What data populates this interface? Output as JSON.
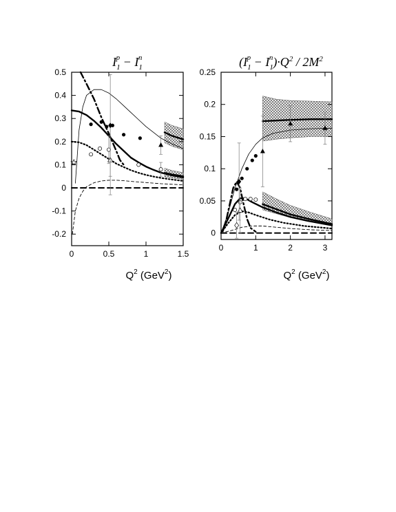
{
  "chart_data": [
    {
      "type": "line",
      "title": "I_1^p − I_1^n",
      "title_parts": [
        "I",
        "1",
        "p",
        " − I",
        "1",
        "n"
      ],
      "xlabel": "Q² (GeV²)",
      "xlabel_parts": [
        "Q",
        "2",
        " (GeV",
        "2",
        ")"
      ],
      "xlim": [
        0,
        1.5
      ],
      "ylim": [
        -0.25,
        0.5
      ],
      "xticks": [
        "0",
        "0.5",
        "1",
        "1.5"
      ],
      "xtick_values": [
        0,
        0.5,
        1,
        1.5
      ],
      "yticks": [
        "-0.2",
        "-0.1",
        "0",
        "0.1",
        "0.2",
        "0.3",
        "0.4",
        "0.5"
      ],
      "ytick_values": [
        -0.2,
        -0.1,
        0,
        0.1,
        0.2,
        0.3,
        0.4,
        0.5
      ],
      "grid": false,
      "series": [
        {
          "style": "thin-solid",
          "points": [
            [
              0.05,
              0.02
            ],
            [
              0.1,
              0.25
            ],
            [
              0.15,
              0.35
            ],
            [
              0.2,
              0.4
            ],
            [
              0.3,
              0.425
            ],
            [
              0.4,
              0.425
            ],
            [
              0.5,
              0.41
            ],
            [
              0.6,
              0.385
            ],
            [
              0.7,
              0.355
            ],
            [
              0.8,
              0.325
            ],
            [
              0.9,
              0.295
            ],
            [
              1.0,
              0.265
            ],
            [
              1.1,
              0.24
            ],
            [
              1.2,
              0.215
            ],
            [
              1.35,
              0.19
            ],
            [
              1.5,
              0.17
            ]
          ]
        },
        {
          "style": "thick-solid",
          "points": [
            [
              0,
              0.335
            ],
            [
              0.1,
              0.33
            ],
            [
              0.2,
              0.315
            ],
            [
              0.3,
              0.29
            ],
            [
              0.4,
              0.26
            ],
            [
              0.5,
              0.225
            ],
            [
              0.6,
              0.19
            ],
            [
              0.7,
              0.16
            ],
            [
              0.8,
              0.13
            ],
            [
              0.9,
              0.11
            ],
            [
              1.0,
              0.092
            ],
            [
              1.1,
              0.078
            ],
            [
              1.2,
              0.066
            ],
            [
              1.35,
              0.054
            ],
            [
              1.5,
              0.045
            ]
          ]
        },
        {
          "style": "thick-dashdot",
          "points": [
            [
              0.12,
              0.5
            ],
            [
              0.2,
              0.45
            ],
            [
              0.3,
              0.385
            ],
            [
              0.4,
              0.305
            ],
            [
              0.5,
              0.235
            ],
            [
              0.6,
              0.16
            ],
            [
              0.65,
              0.12
            ],
            [
              0.7,
              0.1
            ]
          ]
        },
        {
          "style": "thick-dotted",
          "points": [
            [
              0,
              0.2
            ],
            [
              0.1,
              0.197
            ],
            [
              0.2,
              0.185
            ],
            [
              0.3,
              0.165
            ],
            [
              0.4,
              0.145
            ],
            [
              0.5,
              0.125
            ],
            [
              0.6,
              0.105
            ],
            [
              0.7,
              0.09
            ],
            [
              0.8,
              0.076
            ],
            [
              0.9,
              0.065
            ],
            [
              1.0,
              0.056
            ],
            [
              1.1,
              0.049
            ],
            [
              1.2,
              0.043
            ],
            [
              1.35,
              0.036
            ],
            [
              1.5,
              0.03
            ]
          ]
        },
        {
          "style": "thin-dashed",
          "points": [
            [
              0.01,
              -0.2
            ],
            [
              0.05,
              -0.1
            ],
            [
              0.1,
              -0.045
            ],
            [
              0.15,
              -0.015
            ],
            [
              0.2,
              0.005
            ],
            [
              0.3,
              0.022
            ],
            [
              0.4,
              0.03
            ],
            [
              0.5,
              0.033
            ],
            [
              0.6,
              0.033
            ],
            [
              0.7,
              0.031
            ],
            [
              0.8,
              0.028
            ],
            [
              1.0,
              0.023
            ],
            [
              1.2,
              0.018
            ],
            [
              1.5,
              0.013
            ]
          ]
        },
        {
          "style": "thick-dashed",
          "points": [
            [
              0,
              0
            ],
            [
              1.5,
              0
            ]
          ]
        },
        {
          "style": "thick-solid",
          "points": [
            [
              1.25,
              0.24
            ],
            [
              1.35,
              0.225
            ],
            [
              1.5,
              0.21
            ]
          ]
        },
        {
          "style": "thick-solid",
          "points": [
            [
              1.25,
              0.065
            ],
            [
              1.35,
              0.058
            ],
            [
              1.5,
              0.05
            ]
          ]
        }
      ],
      "bands": [
        {
          "x": [
            1.25,
            1.35,
            1.5
          ],
          "lower": [
            0.195,
            0.18,
            0.165
          ],
          "upper": [
            0.285,
            0.27,
            0.255
          ]
        },
        {
          "x": [
            1.25,
            1.35,
            1.5
          ],
          "lower": [
            0.048,
            0.043,
            0.037
          ],
          "upper": [
            0.085,
            0.075,
            0.066
          ]
        }
      ],
      "points": [
        {
          "marker": "filled-circle",
          "data": [
            [
              0.26,
              0.275,
              0
            ],
            [
              0.4,
              0.285,
              0
            ],
            [
              0.47,
              0.265,
              0
            ],
            [
              0.55,
              0.27,
              0
            ],
            [
              0.7,
              0.23,
              0
            ],
            [
              0.92,
              0.215,
              0
            ]
          ]
        },
        {
          "marker": "open-circle",
          "data": [
            [
              0.26,
              0.145,
              0
            ],
            [
              0.38,
              0.17,
              0
            ],
            [
              0.5,
              0.165,
              0.06
            ],
            [
              0.9,
              0.1,
              0
            ],
            [
              1.2,
              0.08,
              0.03
            ]
          ]
        },
        {
          "marker": "filled-triangle",
          "data": [
            [
              1.2,
              0.185,
              0.04
            ]
          ]
        },
        {
          "marker": "open-triangle",
          "data": [
            [
              0.52,
              0.12,
              0.15
            ]
          ]
        },
        {
          "marker": "filled-diamond",
          "data": [
            [
              0.52,
              0.27,
              0.22
            ]
          ]
        },
        {
          "marker": "star",
          "data": [
            [
              0.03,
              0.11,
              0
            ]
          ]
        }
      ]
    },
    {
      "type": "line",
      "title": "(I_1^p − I_1^n)·Q²/2M²",
      "title_parts": [
        "(I",
        "1",
        "p",
        " − I",
        "1",
        "n",
        ")·Q",
        "2",
        " / 2M",
        "2"
      ],
      "xlabel": "Q² (GeV²)",
      "xlabel_parts": [
        "Q",
        "2",
        " (GeV",
        "2",
        ")"
      ],
      "xlim": [
        0,
        3.2
      ],
      "ylim": [
        -0.01,
        0.25
      ],
      "xticks": [
        "0",
        "1",
        "2",
        "3"
      ],
      "xtick_values": [
        0,
        1,
        2,
        3
      ],
      "yticks": [
        "0",
        "0.05",
        "0.1",
        "0.15",
        "0.2",
        "0.25"
      ],
      "ytick_values": [
        0,
        0.05,
        0.1,
        0.15,
        0.2,
        0.25
      ],
      "grid": false,
      "series": [
        {
          "style": "thin-solid",
          "points": [
            [
              0,
              0
            ],
            [
              0.2,
              0.03
            ],
            [
              0.4,
              0.07
            ],
            [
              0.6,
              0.1
            ],
            [
              0.8,
              0.123
            ],
            [
              1.0,
              0.138
            ],
            [
              1.2,
              0.148
            ],
            [
              1.5,
              0.155
            ],
            [
              2.0,
              0.16
            ],
            [
              2.5,
              0.162
            ],
            [
              3.2,
              0.163
            ]
          ]
        },
        {
          "style": "thick-solid",
          "points": [
            [
              0,
              0
            ],
            [
              0.2,
              0.022
            ],
            [
              0.4,
              0.045
            ],
            [
              0.55,
              0.054
            ],
            [
              0.7,
              0.054
            ],
            [
              0.9,
              0.048
            ],
            [
              1.2,
              0.04
            ],
            [
              1.6,
              0.032
            ],
            [
              2.0,
              0.025
            ],
            [
              2.5,
              0.019
            ],
            [
              3.2,
              0.012
            ]
          ]
        },
        {
          "style": "thick-dashdot",
          "points": [
            [
              0.05,
              0.003
            ],
            [
              0.15,
              0.02
            ],
            [
              0.25,
              0.045
            ],
            [
              0.35,
              0.07
            ],
            [
              0.45,
              0.08
            ],
            [
              0.55,
              0.07
            ],
            [
              0.65,
              0.045
            ],
            [
              0.75,
              0.022
            ],
            [
              0.85,
              0.008
            ],
            [
              1.0,
              0.002
            ]
          ]
        },
        {
          "style": "thick-dotted",
          "points": [
            [
              0,
              0
            ],
            [
              0.2,
              0.015
            ],
            [
              0.4,
              0.028
            ],
            [
              0.6,
              0.034
            ],
            [
              0.8,
              0.032
            ],
            [
              1.0,
              0.028
            ],
            [
              1.4,
              0.021
            ],
            [
              1.8,
              0.016
            ],
            [
              2.4,
              0.011
            ],
            [
              3.2,
              0.007
            ]
          ]
        },
        {
          "style": "thin-dashed",
          "points": [
            [
              0,
              0
            ],
            [
              0.3,
              0.004
            ],
            [
              0.6,
              0.009
            ],
            [
              0.9,
              0.011
            ],
            [
              1.2,
              0.011
            ],
            [
              1.6,
              0.009
            ],
            [
              2.0,
              0.007
            ],
            [
              2.6,
              0.005
            ],
            [
              3.2,
              0.004
            ]
          ]
        },
        {
          "style": "thick-dashed",
          "points": [
            [
              0,
              0
            ],
            [
              3.2,
              0
            ]
          ]
        },
        {
          "style": "thick-solid",
          "points": [
            [
              1.2,
              0.174
            ],
            [
              2.0,
              0.176
            ],
            [
              2.6,
              0.177
            ],
            [
              3.2,
              0.177
            ]
          ]
        },
        {
          "style": "thick-solid",
          "points": [
            [
              1.2,
              0.045
            ],
            [
              1.6,
              0.037
            ],
            [
              2.0,
              0.029
            ],
            [
              2.6,
              0.021
            ],
            [
              3.2,
              0.014
            ]
          ]
        }
      ],
      "bands": [
        {
          "x": [
            1.2,
            1.6,
            2.0,
            2.6,
            3.2
          ],
          "lower": [
            0.143,
            0.146,
            0.148,
            0.15,
            0.15
          ],
          "upper": [
            0.213,
            0.208,
            0.206,
            0.205,
            0.204
          ]
        },
        {
          "x": [
            1.2,
            1.6,
            2.0,
            2.6,
            3.2
          ],
          "lower": [
            0.036,
            0.03,
            0.024,
            0.018,
            0.012
          ],
          "upper": [
            0.064,
            0.053,
            0.043,
            0.032,
            0.022
          ]
        }
      ],
      "points": [
        {
          "marker": "filled-circle",
          "data": [
            [
              0.45,
              0.068,
              0
            ],
            [
              0.6,
              0.085,
              0
            ],
            [
              0.75,
              0.1,
              0
            ],
            [
              0.9,
              0.113,
              0
            ],
            [
              1.0,
              0.12,
              0
            ]
          ]
        },
        {
          "marker": "open-circle",
          "data": [
            [
              0.4,
              0.036,
              0
            ],
            [
              0.55,
              0.048,
              0
            ],
            [
              0.7,
              0.053,
              0
            ],
            [
              0.85,
              0.053,
              0
            ],
            [
              1.0,
              0.052,
              0
            ]
          ]
        },
        {
          "marker": "open-diamond",
          "data": [
            [
              0.45,
              0.012,
              0.02
            ]
          ]
        },
        {
          "marker": "filled-triangle",
          "data": [
            [
              1.2,
              0.127,
              0.055
            ],
            [
              2.0,
              0.17,
              0.028
            ],
            [
              3.0,
              0.163,
              0.025
            ]
          ]
        },
        {
          "marker": "open-triangle",
          "data": [
            [
              0.55,
              0.035,
              0.035
            ]
          ]
        },
        {
          "marker": "filled-diamond",
          "data": [
            [
              0.52,
              0.08,
              0.06
            ]
          ]
        }
      ]
    }
  ]
}
